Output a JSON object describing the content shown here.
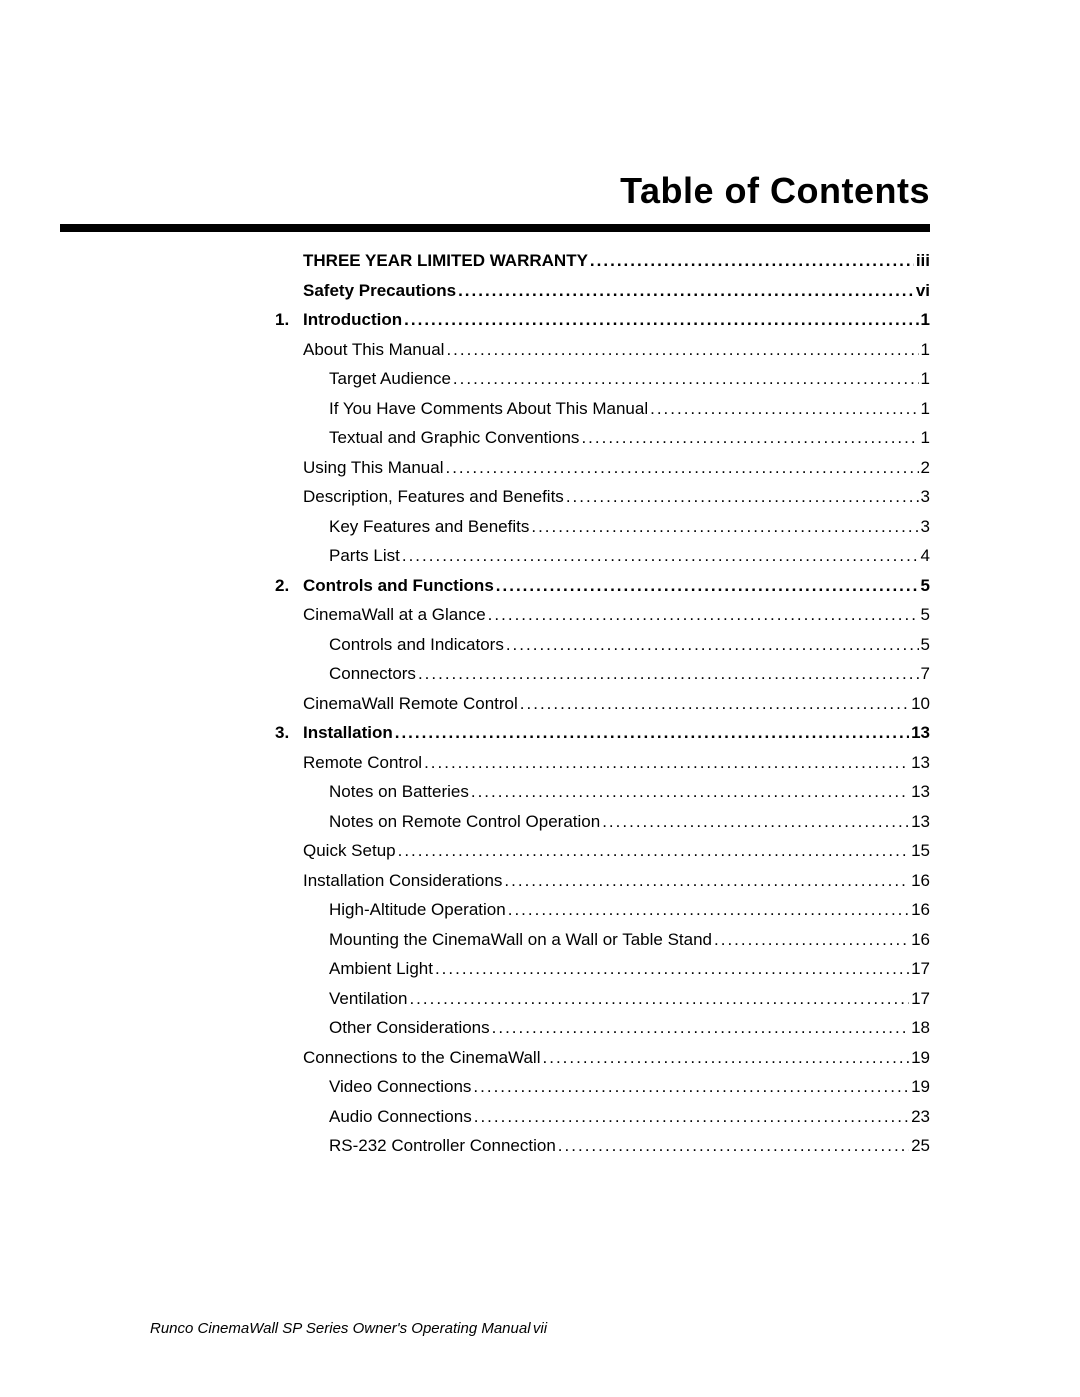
{
  "title": "Table of Contents",
  "footer": {
    "title": "Runco CinemaWall SP Series Owner's Operating Manual",
    "page": "vii"
  },
  "toc": [
    {
      "num": "",
      "text": "THREE YEAR LIMITED WARRANTY",
      "page": "iii",
      "bold": true,
      "caps": true,
      "indent": 0
    },
    {
      "num": "",
      "text": "Safety Precautions",
      "page": "vi",
      "bold": true,
      "indent": 0
    },
    {
      "num": "1.",
      "text": "Introduction",
      "page": "1",
      "bold": true,
      "indent": 0
    },
    {
      "num": "",
      "text": "About This Manual",
      "page": "1",
      "indent": 1
    },
    {
      "num": "",
      "text": "Target Audience",
      "page": "1",
      "indent": 2
    },
    {
      "num": "",
      "text": "If You Have Comments About This Manual",
      "page": "1",
      "indent": 2
    },
    {
      "num": "",
      "text": "Textual and Graphic Conventions",
      "page": "1",
      "indent": 2
    },
    {
      "num": "",
      "text": "Using This Manual",
      "page": "2",
      "indent": 1
    },
    {
      "num": "",
      "text": "Description, Features and Benefits",
      "page": "3",
      "indent": 1
    },
    {
      "num": "",
      "text": "Key Features and Benefits",
      "page": "3",
      "indent": 2
    },
    {
      "num": "",
      "text": "Parts List",
      "page": "4",
      "indent": 2
    },
    {
      "num": "2.",
      "text": "Controls and Functions",
      "page": "5",
      "bold": true,
      "indent": 0
    },
    {
      "num": "",
      "text": "CinemaWall at a Glance",
      "page": "5",
      "indent": 1
    },
    {
      "num": "",
      "text": "Controls and Indicators",
      "page": "5",
      "indent": 2
    },
    {
      "num": "",
      "text": "Connectors",
      "page": "7",
      "indent": 2
    },
    {
      "num": "",
      "text": "CinemaWall Remote Control",
      "page": "10",
      "indent": 1
    },
    {
      "num": "3.",
      "text": "Installation",
      "page": "13",
      "bold": true,
      "indent": 0
    },
    {
      "num": "",
      "text": "Remote Control",
      "page": "13",
      "indent": 1
    },
    {
      "num": "",
      "text": "Notes on Batteries",
      "page": "13",
      "indent": 2
    },
    {
      "num": "",
      "text": "Notes on Remote Control Operation",
      "page": "13",
      "indent": 2
    },
    {
      "num": "",
      "text": "Quick Setup",
      "page": "15",
      "indent": 1
    },
    {
      "num": "",
      "text": "Installation Considerations",
      "page": "16",
      "indent": 1
    },
    {
      "num": "",
      "text": "High-Altitude Operation",
      "page": "16",
      "indent": 2
    },
    {
      "num": "",
      "text": "Mounting the CinemaWall on a Wall or Table Stand",
      "page": "16",
      "indent": 2
    },
    {
      "num": "",
      "text": "Ambient Light",
      "page": "17",
      "indent": 2
    },
    {
      "num": "",
      "text": "Ventilation",
      "page": "17",
      "indent": 2
    },
    {
      "num": "",
      "text": "Other Considerations",
      "page": "18",
      "indent": 2
    },
    {
      "num": "",
      "text": "Connections to the CinemaWall",
      "page": "19",
      "indent": 1
    },
    {
      "num": "",
      "text": "Video Connections",
      "page": "19",
      "indent": 2
    },
    {
      "num": "",
      "text": "Audio Connections",
      "page": "23",
      "indent": 2
    },
    {
      "num": "",
      "text": "RS-232 Controller Connection",
      "page": "25",
      "indent": 2
    }
  ]
}
